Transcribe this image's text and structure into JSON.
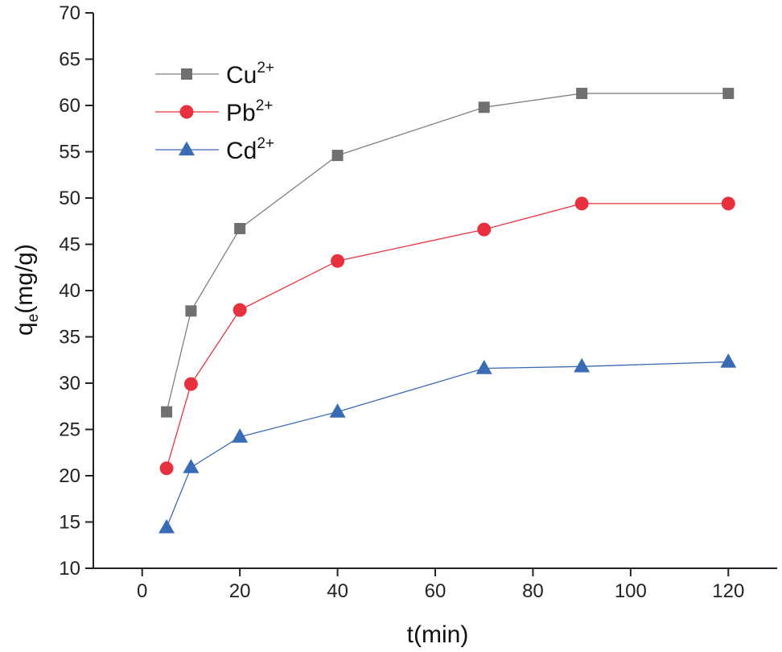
{
  "chart_data": {
    "type": "line",
    "title": "",
    "xlabel": "t(min)",
    "ylabel": {
      "main": "q",
      "subscript": "e",
      "rest": "(mg/g)"
    },
    "xlim": [
      -10,
      130
    ],
    "ylim": [
      10,
      70
    ],
    "xticks": [
      0,
      20,
      40,
      60,
      80,
      100,
      120
    ],
    "yticks": [
      10,
      15,
      20,
      25,
      30,
      35,
      40,
      45,
      50,
      55,
      60,
      65,
      70
    ],
    "x": [
      5,
      10,
      20,
      40,
      70,
      90,
      120
    ],
    "grid": false,
    "legend_position": "top-left",
    "series": [
      {
        "name": "Cu",
        "superscript": "2+",
        "marker": "square",
        "color": "#707070",
        "line_color": "#808080",
        "values": [
          26.9,
          37.8,
          46.7,
          54.6,
          59.8,
          61.3,
          61.3
        ]
      },
      {
        "name": "Pb",
        "superscript": "2+",
        "marker": "circle",
        "color": "#e8313f",
        "line_color": "#e8313f",
        "values": [
          20.8,
          29.9,
          37.9,
          43.2,
          46.6,
          49.4,
          49.4
        ]
      },
      {
        "name": "Cd",
        "superscript": "2+",
        "marker": "triangle",
        "color": "#3a6bb5",
        "line_color": "#3a6bb5",
        "values": [
          14.4,
          20.9,
          24.2,
          26.9,
          31.6,
          31.8,
          32.3
        ]
      }
    ]
  }
}
